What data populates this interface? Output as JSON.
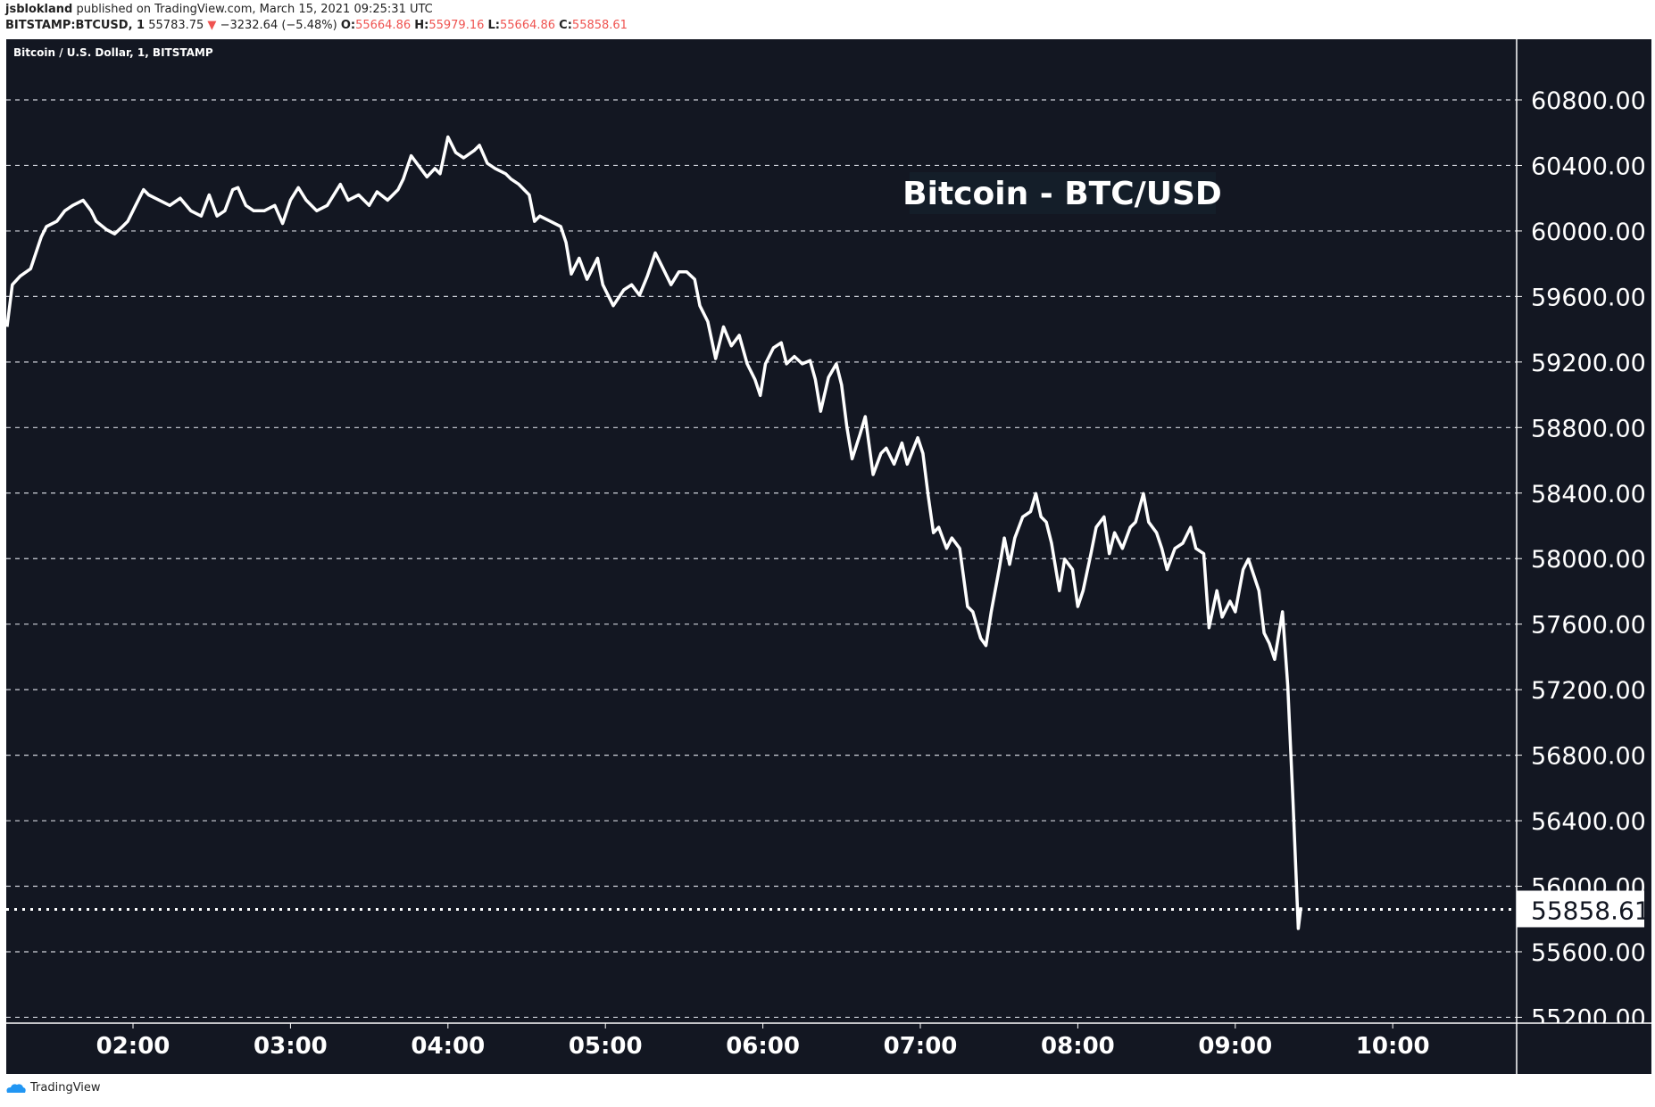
{
  "header": {
    "author": "jsblokland",
    "published": "published on TradingView.com, March 15, 2021 09:25:31 UTC",
    "symbol": "BITSTAMP:BTCUSD, 1",
    "last": "55783.75",
    "change": "−3232.64 (−5.48%)",
    "o_label": "O:",
    "o": "55664.86",
    "h_label": "H:",
    "h": "55979.16",
    "l_label": "L:",
    "l": "55664.86",
    "c_label": "C:",
    "c": "55858.61",
    "down_arrow": "▼"
  },
  "legend": "Bitcoin / U.S. Dollar, 1, BITSTAMP",
  "footer": {
    "brand": "TradingView"
  },
  "colors": {
    "background": "#131722",
    "line": "#ffffff",
    "down": "#ef5350"
  },
  "chart_data": {
    "type": "line",
    "title": "Bitcoin - BTC/USD",
    "xlabel": "",
    "ylabel": "",
    "x_unit": "minutes since 00:00 UTC",
    "xlim": [
      70,
      690
    ],
    "ylim": [
      55150,
      61050
    ],
    "x_ticks": [
      {
        "v": 120,
        "label": "02:00"
      },
      {
        "v": 180,
        "label": "03:00"
      },
      {
        "v": 240,
        "label": "04:00"
      },
      {
        "v": 300,
        "label": "05:00"
      },
      {
        "v": 360,
        "label": "06:00"
      },
      {
        "v": 420,
        "label": "07:00"
      },
      {
        "v": 480,
        "label": "08:00"
      },
      {
        "v": 540,
        "label": "09:00"
      },
      {
        "v": 600,
        "label": "10:00"
      }
    ],
    "y_ticks": [
      {
        "v": 60800,
        "label": "60800.00"
      },
      {
        "v": 60400,
        "label": "60400.00"
      },
      {
        "v": 60000,
        "label": "60000.00"
      },
      {
        "v": 59600,
        "label": "59600.00"
      },
      {
        "v": 59200,
        "label": "59200.00"
      },
      {
        "v": 58800,
        "label": "58800.00"
      },
      {
        "v": 58400,
        "label": "58400.00"
      },
      {
        "v": 58000,
        "label": "58000.00"
      },
      {
        "v": 57600,
        "label": "57600.00"
      },
      {
        "v": 57200,
        "label": "57200.00"
      },
      {
        "v": 56800,
        "label": "56800.00"
      },
      {
        "v": 56400,
        "label": "56400.00"
      },
      {
        "v": 56000,
        "label": "56000.00"
      },
      {
        "v": 55600,
        "label": "55600.00"
      },
      {
        "v": 55200,
        "label": "55200.00"
      }
    ],
    "last_price": {
      "v": 55858.61,
      "label": "55858.61"
    },
    "grid": true,
    "x": [
      72,
      74,
      77,
      81,
      85,
      87,
      91,
      94,
      97,
      101,
      104,
      106,
      110,
      113,
      116,
      118,
      121,
      124,
      126,
      130,
      134,
      138,
      142,
      146,
      149,
      152,
      155,
      158,
      160,
      163,
      166,
      170,
      174,
      177,
      180,
      183,
      186,
      190,
      194,
      199,
      202,
      206,
      210,
      213,
      217,
      221,
      223,
      226,
      229,
      232,
      235,
      237,
      240,
      243,
      246,
      250,
      252,
      255,
      258,
      262,
      264,
      267,
      271,
      273,
      275,
      279,
      283,
      285,
      287,
      290,
      293,
      297,
      299,
      303,
      307,
      310,
      313,
      316,
      319,
      322,
      325,
      328,
      331,
      334,
      336,
      339,
      342,
      345,
      348,
      351,
      354,
      357,
      359,
      361,
      364,
      367,
      369,
      372,
      375,
      378,
      380,
      382,
      385,
      388,
      390,
      392,
      394,
      397,
      399,
      402,
      405,
      407,
      410,
      413,
      415,
      419,
      421,
      423,
      425,
      427,
      430,
      432,
      435,
      438,
      440,
      443,
      445,
      447,
      450,
      452,
      454,
      456,
      459,
      462,
      464,
      466,
      468,
      470,
      473,
      475,
      478,
      480,
      482,
      485,
      487,
      490,
      492,
      494,
      497,
      500,
      502,
      505,
      507,
      510,
      512,
      514,
      517,
      520,
      523,
      525,
      528,
      530,
      533,
      535,
      538,
      540,
      543,
      545,
      547,
      549,
      551,
      553,
      555,
      558,
      560,
      562,
      564,
      565
    ],
    "y": [
      59415,
      59672,
      59724,
      59769,
      59962,
      60027,
      60059,
      60123,
      60156,
      60188,
      60123,
      60059,
      60007,
      59982,
      60027,
      60059,
      60156,
      60252,
      60220,
      60188,
      60156,
      60200,
      60123,
      60091,
      60220,
      60091,
      60123,
      60252,
      60265,
      60156,
      60123,
      60123,
      60156,
      60046,
      60188,
      60265,
      60188,
      60123,
      60156,
      60285,
      60188,
      60220,
      60156,
      60239,
      60188,
      60252,
      60317,
      60459,
      60394,
      60330,
      60381,
      60349,
      60574,
      60478,
      60446,
      60491,
      60523,
      60413,
      60381,
      60349,
      60317,
      60285,
      60220,
      60059,
      60091,
      60059,
      60027,
      59930,
      59737,
      59834,
      59705,
      59834,
      59672,
      59544,
      59640,
      59672,
      59608,
      59724,
      59866,
      59770,
      59672,
      59750,
      59750,
      59705,
      59544,
      59447,
      59221,
      59415,
      59299,
      59363,
      59189,
      59093,
      58996,
      59189,
      59286,
      59318,
      59189,
      59234,
      59189,
      59209,
      59093,
      58899,
      59106,
      59189,
      59060,
      58803,
      58609,
      58758,
      58867,
      58513,
      58642,
      58674,
      58577,
      58706,
      58577,
      58738,
      58642,
      58384,
      58158,
      58191,
      58062,
      58126,
      58062,
      57707,
      57675,
      57514,
      57469,
      57675,
      57933,
      58126,
      57965,
      58126,
      58255,
      58287,
      58397,
      58255,
      58223,
      58094,
      57804,
      57997,
      57933,
      57707,
      57804,
      58030,
      58191,
      58255,
      58030,
      58158,
      58062,
      58191,
      58223,
      58397,
      58223,
      58158,
      58062,
      57933,
      58062,
      58094,
      58191,
      58062,
      58030,
      57578,
      57804,
      57643,
      57740,
      57675,
      57933,
      57997,
      57901,
      57804,
      57546,
      57482,
      57385,
      57675,
      57224,
      56515,
      55742,
      55871
    ]
  }
}
